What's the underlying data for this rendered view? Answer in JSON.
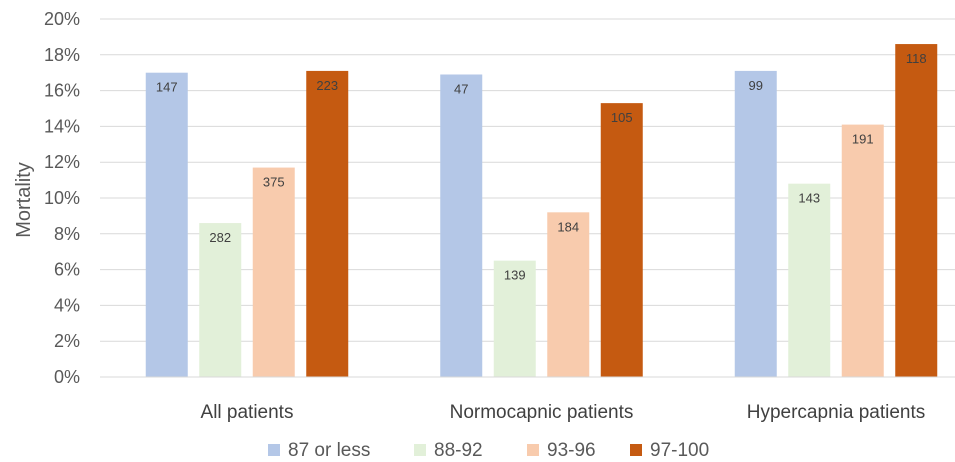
{
  "chart_data": {
    "type": "bar",
    "title": "",
    "xlabel": "",
    "ylabel": "Mortality",
    "ylim": [
      0,
      20
    ],
    "y_ticks": [
      "0%",
      "2%",
      "4%",
      "6%",
      "8%",
      "10%",
      "12%",
      "14%",
      "16%",
      "18%",
      "20%"
    ],
    "grid": true,
    "legend_position": "bottom",
    "categories": [
      "All patients",
      "Normocapnic patients",
      "Hypercapnia patients"
    ],
    "series": [
      {
        "name": "87 or less",
        "color": "#b4c7e7",
        "values": [
          17.0,
          16.9,
          17.1
        ],
        "labels": [
          "147",
          "47",
          "99"
        ]
      },
      {
        "name": "88-92",
        "color": "#e2f0d9",
        "values": [
          8.6,
          6.5,
          10.8
        ],
        "labels": [
          "282",
          "139",
          "143"
        ]
      },
      {
        "name": "93-96",
        "color": "#f8cbad",
        "values": [
          11.7,
          9.2,
          14.1
        ],
        "labels": [
          "375",
          "184",
          "191"
        ]
      },
      {
        "name": "97-100",
        "color": "#c55a11",
        "values": [
          17.1,
          15.3,
          18.6
        ],
        "labels": [
          "223",
          "105",
          "118"
        ]
      }
    ]
  }
}
